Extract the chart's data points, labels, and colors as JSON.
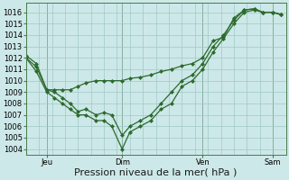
{
  "bg_color": "#cde8e8",
  "grid_color": "#a0c8c8",
  "line_color": "#2d6a2d",
  "marker_color": "#2d6a2d",
  "xlabel": "Pression niveau de la mer( hPa )",
  "ylim": [
    1003.5,
    1016.8
  ],
  "yticks": [
    1004,
    1005,
    1006,
    1007,
    1008,
    1009,
    1010,
    1011,
    1012,
    1013,
    1014,
    1015,
    1016
  ],
  "xtick_positions": [
    0.08,
    0.37,
    0.68,
    0.95
  ],
  "xtick_labels": [
    "Jeu",
    "Dim",
    "Ven",
    "Sam"
  ],
  "series1_x": [
    0.0,
    0.04,
    0.08,
    0.11,
    0.14,
    0.17,
    0.2,
    0.23,
    0.27,
    0.3,
    0.33,
    0.37,
    0.4,
    0.44,
    0.48,
    0.52,
    0.56,
    0.6,
    0.64,
    0.68,
    0.72,
    0.76,
    0.8,
    0.84,
    0.88,
    0.91,
    0.95,
    0.98
  ],
  "series1_y": [
    1012.0,
    1010.8,
    1009.0,
    1008.5,
    1008.0,
    1007.5,
    1007.0,
    1007.0,
    1006.5,
    1006.5,
    1006.0,
    1004.0,
    1005.5,
    1006.0,
    1006.5,
    1007.5,
    1008.0,
    1009.5,
    1010.0,
    1011.0,
    1012.5,
    1013.7,
    1015.0,
    1016.0,
    1016.2,
    1016.0,
    1016.0,
    1015.8
  ],
  "series2_x": [
    0.0,
    0.04,
    0.08,
    0.11,
    0.14,
    0.17,
    0.2,
    0.23,
    0.27,
    0.3,
    0.33,
    0.37,
    0.4,
    0.44,
    0.48,
    0.52,
    0.56,
    0.6,
    0.64,
    0.68,
    0.72,
    0.76,
    0.8,
    0.84,
    0.88,
    0.91,
    0.95,
    0.98
  ],
  "series2_y": [
    1012.0,
    1011.2,
    1009.2,
    1009.0,
    1008.5,
    1008.0,
    1007.3,
    1007.5,
    1007.0,
    1007.2,
    1007.0,
    1005.2,
    1006.0,
    1006.5,
    1007.0,
    1008.0,
    1009.0,
    1010.0,
    1010.5,
    1011.5,
    1013.0,
    1014.0,
    1015.3,
    1016.2,
    1016.3,
    1016.0,
    1016.0,
    1015.8
  ],
  "series3_x": [
    0.0,
    0.04,
    0.08,
    0.11,
    0.14,
    0.17,
    0.2,
    0.23,
    0.27,
    0.3,
    0.33,
    0.37,
    0.4,
    0.44,
    0.48,
    0.52,
    0.56,
    0.6,
    0.64,
    0.68,
    0.72,
    0.76,
    0.8,
    0.84,
    0.88,
    0.91,
    0.95,
    0.98
  ],
  "series3_y": [
    1012.2,
    1011.5,
    1009.2,
    1009.2,
    1009.2,
    1009.2,
    1009.5,
    1009.8,
    1010.0,
    1010.0,
    1010.0,
    1010.0,
    1010.2,
    1010.3,
    1010.5,
    1010.8,
    1011.0,
    1011.3,
    1011.5,
    1012.0,
    1013.5,
    1013.8,
    1015.5,
    1016.2,
    1016.3,
    1016.0,
    1016.0,
    1015.8
  ],
  "vline_positions": [
    0.08,
    0.37,
    0.68,
    0.95
  ],
  "xlabel_fontsize": 8,
  "tick_fontsize": 6,
  "figwidth": 3.2,
  "figheight": 2.0,
  "dpi": 100
}
